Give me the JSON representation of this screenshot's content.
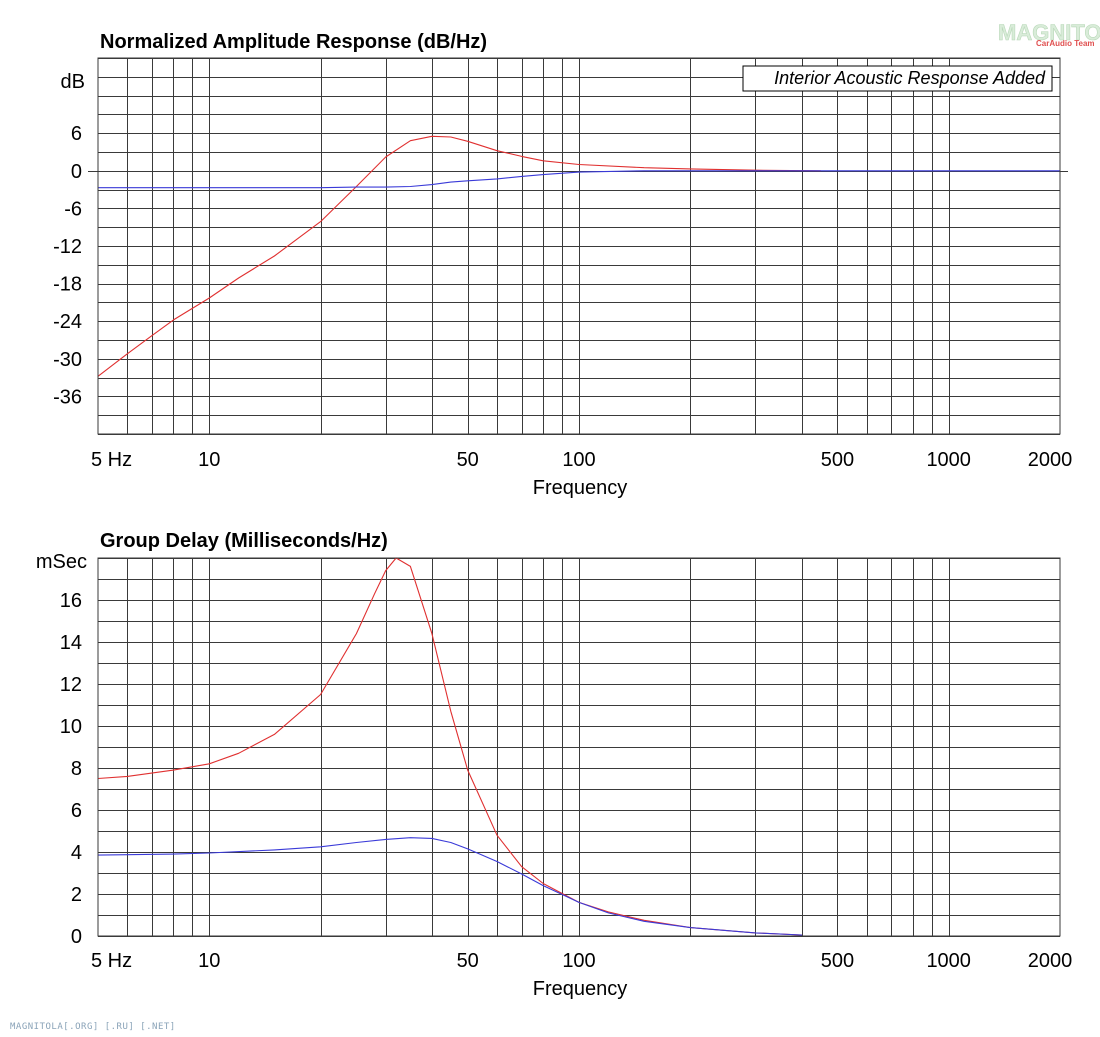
{
  "watermark": {
    "text": "MAGNITOLA",
    "subtext": "CarAudio Team"
  },
  "footer": "MAGNITOLA[.ORG] [.RU] [.NET]",
  "chart_data": [
    {
      "type": "line",
      "title": "Normalized Amplitude Response (dB/Hz)",
      "ylabel": "dB",
      "xlabel": "Frequency",
      "x_scale": "log",
      "xlim": [
        5,
        2000
      ],
      "ylim": [
        -42,
        18
      ],
      "y_ticks": [
        6,
        0,
        -6,
        -12,
        -18,
        -24,
        -30,
        -36
      ],
      "x_tick_labels": [
        {
          "value": 5,
          "label": "5  Hz"
        },
        {
          "value": 10,
          "label": "10"
        },
        {
          "value": 50,
          "label": "50"
        },
        {
          "value": 100,
          "label": "100"
        },
        {
          "value": 500,
          "label": "500"
        },
        {
          "value": 1000,
          "label": "1000"
        },
        {
          "value": 2000,
          "label": "2000"
        }
      ],
      "annotation": "Interior Acoustic Response Added",
      "grid": true,
      "series": [
        {
          "color": "#e03030",
          "x": [
            5,
            6,
            7,
            8,
            10,
            12,
            15,
            20,
            25,
            30,
            35,
            40,
            45,
            50,
            60,
            70,
            80,
            100,
            150,
            200,
            300,
            450
          ],
          "y": [
            -32.8,
            -29.2,
            -26.3,
            -23.8,
            -20.3,
            -17.1,
            -13.6,
            -8.1,
            -2.5,
            2.2,
            4.8,
            5.5,
            5.4,
            4.7,
            3.2,
            2.3,
            1.6,
            1.0,
            0.5,
            0.3,
            0.1,
            0
          ]
        },
        {
          "color": "#3a3ad8",
          "x": [
            5,
            8,
            10,
            15,
            20,
            25,
            30,
            35,
            40,
            45,
            50,
            60,
            70,
            80,
            100,
            150,
            200,
            300,
            500,
            2000
          ],
          "y": [
            -2.7,
            -2.7,
            -2.7,
            -2.7,
            -2.7,
            -2.6,
            -2.6,
            -2.5,
            -2.2,
            -1.8,
            -1.6,
            -1.3,
            -0.9,
            -0.6,
            -0.2,
            0,
            0,
            0,
            0,
            0
          ]
        }
      ]
    },
    {
      "type": "line",
      "title": "Group Delay (Milliseconds/Hz)",
      "ylabel": "mSec",
      "xlabel": "Frequency",
      "x_scale": "log",
      "xlim": [
        5,
        2000
      ],
      "ylim": [
        0,
        18
      ],
      "y_ticks": [
        16,
        14,
        12,
        10,
        8,
        6,
        4,
        2,
        0
      ],
      "x_tick_labels": [
        {
          "value": 5,
          "label": "5  Hz"
        },
        {
          "value": 10,
          "label": "10"
        },
        {
          "value": 50,
          "label": "50"
        },
        {
          "value": 100,
          "label": "100"
        },
        {
          "value": 500,
          "label": "500"
        },
        {
          "value": 1000,
          "label": "1000"
        },
        {
          "value": 2000,
          "label": "2000"
        }
      ],
      "grid": true,
      "series": [
        {
          "color": "#e03030",
          "x": [
            5,
            6,
            8,
            10,
            12,
            15,
            20,
            25,
            28,
            30,
            32,
            35,
            40,
            45,
            50,
            60,
            70,
            80,
            100,
            120,
            150,
            200,
            300,
            400
          ],
          "y": [
            7.5,
            7.6,
            7.9,
            8.2,
            8.7,
            9.6,
            11.5,
            14.4,
            16.3,
            17.4,
            18.0,
            17.6,
            14.4,
            10.7,
            7.9,
            4.8,
            3.3,
            2.5,
            1.6,
            1.15,
            0.75,
            0.4,
            0.15,
            0.05
          ]
        },
        {
          "color": "#3a3ad8",
          "x": [
            5,
            8,
            10,
            15,
            20,
            25,
            30,
            35,
            40,
            45,
            50,
            60,
            70,
            80,
            100,
            120,
            150,
            200,
            300,
            400
          ],
          "y": [
            3.85,
            3.9,
            3.95,
            4.1,
            4.25,
            4.45,
            4.6,
            4.68,
            4.65,
            4.45,
            4.15,
            3.55,
            2.95,
            2.4,
            1.6,
            1.1,
            0.7,
            0.4,
            0.15,
            0.05
          ]
        }
      ]
    }
  ]
}
